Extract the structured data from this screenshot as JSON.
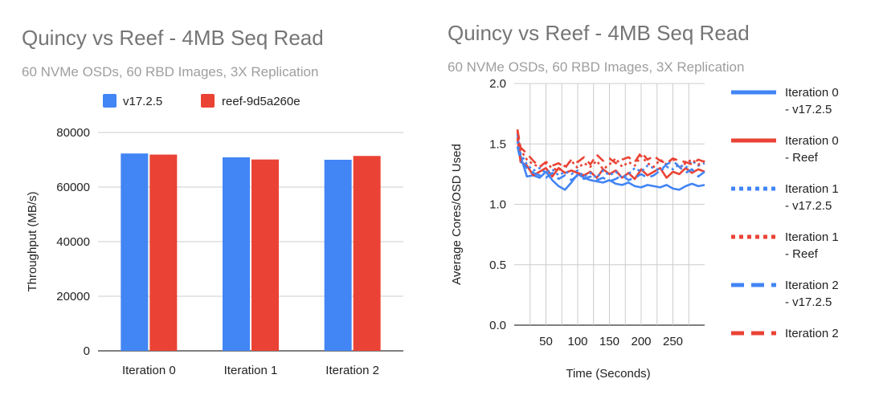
{
  "charts": [
    {
      "type": "bar",
      "title": "Quincy vs Reef - 4MB Seq Read",
      "subtitle": "60 NVMe OSDs, 60 RBD Images, 3X Replication",
      "categories": [
        "Iteration 0",
        "Iteration 1",
        "Iteration 2"
      ],
      "series": [
        {
          "name": "v17.2.5",
          "color": "#4285f4",
          "values": [
            72300,
            70900,
            70000
          ]
        },
        {
          "name": "reef-9d5a260e",
          "color": "#ea4335",
          "values": [
            71900,
            70100,
            71400
          ]
        }
      ],
      "ylabel": "Throughput (MB/s)",
      "xlabel": "",
      "ylim": [
        0,
        80000
      ],
      "yticks": [
        0,
        20000,
        40000,
        60000,
        80000
      ],
      "grid": true,
      "legend": "top"
    },
    {
      "type": "line",
      "title": "Quincy vs Reef - 4MB Seq Read",
      "subtitle": "60 NVMe OSDs, 60 RBD Images, 3X Replication",
      "xlabel": "Time (Seconds)",
      "ylabel": "Average Cores/OSD Used",
      "xlim": [
        0,
        300
      ],
      "ylim": [
        0,
        2.0
      ],
      "xticks": [
        50,
        100,
        150,
        200,
        250
      ],
      "yticks": [
        "0.0",
        "0.5",
        "1.0",
        "1.5",
        "2.0"
      ],
      "grid": true,
      "legend": "right",
      "x": [
        5,
        10,
        20,
        30,
        40,
        50,
        60,
        70,
        80,
        90,
        100,
        110,
        120,
        130,
        140,
        150,
        160,
        170,
        180,
        190,
        200,
        210,
        220,
        230,
        240,
        250,
        260,
        270,
        280,
        290,
        300
      ],
      "series": [
        {
          "name": "Iteration 0 - v17.2.5",
          "color": "#4285f4",
          "style": "solid",
          "values": [
            1.58,
            1.4,
            1.23,
            1.24,
            1.22,
            1.27,
            1.2,
            1.15,
            1.12,
            1.18,
            1.25,
            1.22,
            1.2,
            1.19,
            1.18,
            1.2,
            1.17,
            1.16,
            1.18,
            1.15,
            1.14,
            1.16,
            1.15,
            1.14,
            1.16,
            1.13,
            1.12,
            1.15,
            1.17,
            1.15,
            1.16
          ]
        },
        {
          "name": "Iteration 0 - Reef",
          "color": "#ea4335",
          "style": "solid",
          "values": [
            1.55,
            1.35,
            1.32,
            1.24,
            1.27,
            1.3,
            1.23,
            1.3,
            1.26,
            1.28,
            1.26,
            1.24,
            1.27,
            1.22,
            1.29,
            1.25,
            1.28,
            1.22,
            1.26,
            1.21,
            1.29,
            1.24,
            1.27,
            1.3,
            1.22,
            1.27,
            1.25,
            1.3,
            1.26,
            1.29,
            1.27
          ]
        },
        {
          "name": "Iteration 1 - v17.2.5",
          "color": "#4285f4",
          "style": "dotted",
          "values": [
            1.52,
            1.42,
            1.33,
            1.28,
            1.3,
            1.26,
            1.29,
            1.24,
            1.27,
            1.25,
            1.28,
            1.23,
            1.26,
            1.22,
            1.28,
            1.24,
            1.27,
            1.22,
            1.25,
            1.3,
            1.27,
            1.32,
            1.3,
            1.28,
            1.31,
            1.29,
            1.33,
            1.3,
            1.36,
            1.32,
            1.34
          ]
        },
        {
          "name": "Iteration 1 - Reef",
          "color": "#ea4335",
          "style": "dotted",
          "values": [
            1.6,
            1.45,
            1.37,
            1.33,
            1.31,
            1.34,
            1.3,
            1.28,
            1.32,
            1.36,
            1.3,
            1.34,
            1.31,
            1.36,
            1.29,
            1.33,
            1.38,
            1.31,
            1.35,
            1.32,
            1.4,
            1.34,
            1.31,
            1.37,
            1.33,
            1.38,
            1.3,
            1.34,
            1.37,
            1.33,
            1.36
          ]
        },
        {
          "name": "Iteration 2 - v17.2.5",
          "color": "#4285f4",
          "style": "dashed",
          "values": [
            1.48,
            1.36,
            1.3,
            1.26,
            1.24,
            1.22,
            1.26,
            1.21,
            1.24,
            1.2,
            1.24,
            1.21,
            1.23,
            1.2,
            1.22,
            1.19,
            1.21,
            1.24,
            1.2,
            1.22,
            1.25,
            1.22,
            1.24,
            1.28,
            1.33,
            1.36,
            1.31,
            1.26,
            1.29,
            1.23,
            1.27
          ]
        },
        {
          "name": "Iteration 2",
          "color": "#ea4335",
          "style": "dashed",
          "values": [
            1.62,
            1.47,
            1.42,
            1.36,
            1.31,
            1.35,
            1.32,
            1.34,
            1.3,
            1.37,
            1.35,
            1.39,
            1.33,
            1.41,
            1.36,
            1.38,
            1.34,
            1.37,
            1.39,
            1.35,
            1.43,
            1.37,
            1.4,
            1.36,
            1.34,
            1.38,
            1.36,
            1.35,
            1.33,
            1.37,
            1.35
          ]
        }
      ]
    }
  ]
}
